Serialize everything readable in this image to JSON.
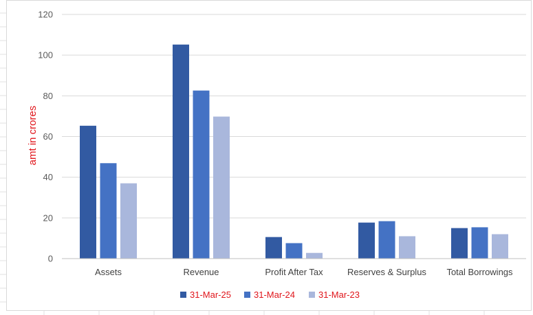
{
  "chart_data": {
    "type": "bar",
    "title": "",
    "xlabel": "",
    "ylabel": "amt in crores",
    "ylim": [
      0,
      120
    ],
    "yticks": [
      0,
      20,
      40,
      60,
      80,
      100,
      120
    ],
    "grid": true,
    "legend_position": "bottom",
    "categories": [
      "Assets",
      "Revenue",
      "Profit After Tax",
      "Reserves & Surplus",
      "Total Borrowings"
    ],
    "series": [
      {
        "name": "31-Mar-25",
        "color": "#325aa2",
        "values": [
          65.3,
          105.2,
          10.6,
          17.7,
          15.0
        ]
      },
      {
        "name": "31-Mar-24",
        "color": "#4472c4",
        "values": [
          46.9,
          82.6,
          7.6,
          18.4,
          15.4
        ]
      },
      {
        "name": "31-Mar-23",
        "color": "#a9b7dc",
        "values": [
          37.0,
          69.8,
          2.8,
          11.0,
          12.0
        ]
      }
    ]
  }
}
